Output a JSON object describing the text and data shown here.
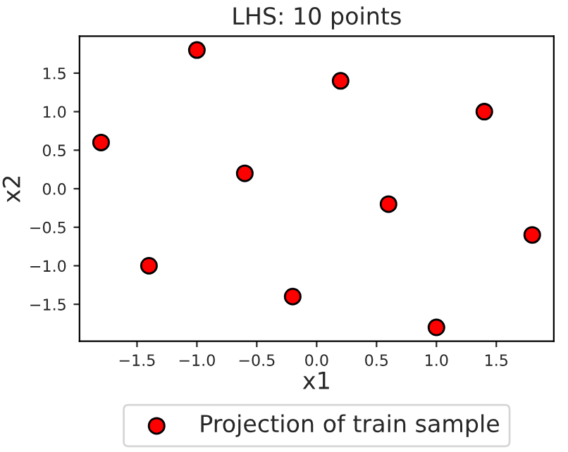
{
  "chart_data": {
    "type": "scatter",
    "title": "LHS: 10 points",
    "xlabel": "x1",
    "ylabel": "x2",
    "x": [
      -1.8,
      -1.4,
      -1.0,
      -0.6,
      -0.2,
      0.2,
      0.6,
      1.0,
      1.4,
      1.8
    ],
    "series": [
      {
        "name": "Projection of train sample",
        "color": "#ff0000",
        "values": [
          0.6,
          -1.0,
          1.8,
          0.2,
          -1.4,
          1.4,
          -0.2,
          -1.8,
          1.0,
          -0.6
        ]
      }
    ],
    "xlim": [
      -1.98,
      1.98
    ],
    "ylim": [
      -1.98,
      1.98
    ],
    "xticks": [
      {
        "value": -1.5,
        "label": "−1.5"
      },
      {
        "value": -1.0,
        "label": "−1.0"
      },
      {
        "value": -0.5,
        "label": "−0.5"
      },
      {
        "value": 0.0,
        "label": "0.0"
      },
      {
        "value": 0.5,
        "label": "0.5"
      },
      {
        "value": 1.0,
        "label": "1.0"
      },
      {
        "value": 1.5,
        "label": "1.5"
      }
    ],
    "yticks": [
      {
        "value": -1.5,
        "label": "−1.5"
      },
      {
        "value": -1.0,
        "label": "−1.0"
      },
      {
        "value": -0.5,
        "label": "−0.5"
      },
      {
        "value": 0.0,
        "label": "0.0"
      },
      {
        "value": 0.5,
        "label": "0.5"
      },
      {
        "value": 1.0,
        "label": "1.0"
      },
      {
        "value": 1.5,
        "label": "1.5"
      }
    ],
    "marker": "circle",
    "legend": "bottom",
    "grid": false
  }
}
